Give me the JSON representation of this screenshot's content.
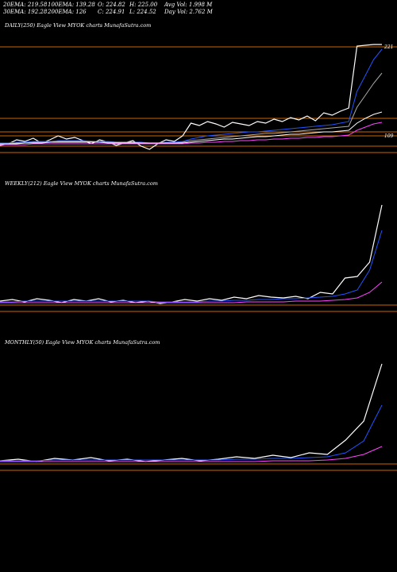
{
  "header": {
    "row1": [
      "20EMA: 219.58",
      "100EMA: 139.28",
      "O: 224.82",
      "H: 225.00",
      "Avg Vol: 1.998 M"
    ],
    "row2": [
      "30EMA: 192.28",
      "200EMA: 126",
      "C: 224.91",
      "L: 224.52",
      "Day Vol: 2.762 M"
    ]
  },
  "panels": {
    "daily": {
      "title": "DAILY(250) Eagle  View MYOK charts MunafaSutra.com"
    },
    "weekly": {
      "title": "WEEKLY(212) Eagle  View MYOK charts MunafaSutra.com"
    },
    "monthly": {
      "title": "MONTHLY(50) Eagle  View MYOK charts MunafaSutra.com"
    }
  },
  "chart_data": [
    {
      "type": "line",
      "panel": "daily",
      "ylim": [
        50,
        240
      ],
      "price_labels": [
        "221",
        "109"
      ],
      "horizontal_levels": [
        221,
        131,
        114,
        109,
        96,
        88
      ],
      "level_color": "#cc6600",
      "series": [
        {
          "color": "#ffffff",
          "values": [
            97,
            99,
            104,
            102,
            106,
            100,
            104,
            109,
            105,
            107,
            103,
            99,
            104,
            101,
            97,
            100,
            103,
            96,
            92,
            99,
            104,
            102,
            109,
            125,
            122,
            127,
            124,
            120,
            126,
            124,
            122,
            127,
            125,
            130,
            127,
            132,
            129,
            134,
            128,
            138,
            135,
            140,
            144,
            222,
            223,
            224,
            224
          ]
        },
        {
          "color": "#2255ff",
          "values": [
            100,
            100,
            101,
            101,
            102,
            102,
            102,
            103,
            103,
            103,
            103,
            102,
            102,
            102,
            101,
            101,
            101,
            101,
            100,
            100,
            101,
            101,
            102,
            105,
            107,
            109,
            110,
            111,
            112,
            113,
            114,
            114,
            115,
            116,
            117,
            118,
            119,
            120,
            121,
            122,
            123,
            125,
            127,
            165,
            185,
            205,
            218
          ]
        },
        {
          "color": "#aaaaaa",
          "values": [
            99,
            99,
            100,
            100,
            101,
            101,
            101,
            102,
            102,
            102,
            102,
            102,
            101,
            101,
            101,
            101,
            101,
            100,
            100,
            100,
            100,
            100,
            101,
            103,
            104,
            105,
            106,
            107,
            108,
            109,
            110,
            111,
            112,
            112,
            113,
            114,
            115,
            116,
            117,
            118,
            119,
            120,
            121,
            145,
            160,
            175,
            188
          ]
        },
        {
          "color": "#ffffff",
          "values": [
            99,
            99,
            99,
            100,
            100,
            100,
            101,
            101,
            101,
            101,
            101,
            101,
            101,
            100,
            100,
            100,
            100,
            100,
            100,
            100,
            100,
            100,
            100,
            101,
            102,
            103,
            104,
            105,
            105,
            106,
            107,
            108,
            108,
            109,
            110,
            111,
            111,
            112,
            113,
            114,
            114,
            115,
            116,
            125,
            131,
            136,
            139
          ]
        },
        {
          "color": "#ff44ff",
          "values": [
            98,
            98,
            98,
            98,
            99,
            99,
            99,
            99,
            99,
            99,
            99,
            99,
            99,
            99,
            99,
            99,
            99,
            99,
            99,
            99,
            99,
            99,
            99,
            100,
            100,
            101,
            101,
            102,
            102,
            103,
            103,
            104,
            104,
            105,
            105,
            106,
            106,
            107,
            107,
            108,
            108,
            109,
            110,
            116,
            120,
            124,
            126
          ]
        }
      ]
    },
    {
      "type": "line",
      "panel": "weekly",
      "ylim": [
        50,
        240
      ],
      "horizontal_levels": [
        96,
        88
      ],
      "level_color": "#cc6600",
      "series": [
        {
          "color": "#ffffff",
          "values": [
            101,
            103,
            100,
            104,
            102,
            99,
            103,
            101,
            104,
            100,
            102,
            99,
            101,
            98,
            100,
            103,
            101,
            104,
            102,
            106,
            104,
            108,
            106,
            105,
            107,
            104,
            112,
            110,
            130,
            132,
            150,
            222
          ]
        },
        {
          "color": "#2255ff",
          "values": [
            100,
            100,
            101,
            101,
            101,
            101,
            101,
            101,
            101,
            101,
            101,
            101,
            101,
            100,
            100,
            100,
            100,
            101,
            101,
            102,
            102,
            103,
            103,
            104,
            104,
            105,
            106,
            107,
            110,
            115,
            140,
            190
          ]
        },
        {
          "color": "#ff44ff",
          "values": [
            99,
            99,
            99,
            99,
            99,
            99,
            99,
            99,
            99,
            99,
            99,
            99,
            99,
            99,
            99,
            99,
            99,
            99,
            99,
            99,
            100,
            100,
            100,
            100,
            101,
            101,
            101,
            102,
            103,
            105,
            112,
            125
          ]
        }
      ]
    },
    {
      "type": "line",
      "panel": "monthly",
      "ylim": [
        50,
        240
      ],
      "horizontal_levels": [
        96,
        88
      ],
      "level_color": "#cc6600",
      "series": [
        {
          "color": "#ffffff",
          "values": [
            100,
            102,
            99,
            103,
            101,
            104,
            100,
            102,
            99,
            101,
            103,
            100,
            102,
            105,
            103,
            107,
            104,
            110,
            108,
            126,
            150,
            222
          ]
        },
        {
          "color": "#2255ff",
          "values": [
            100,
            100,
            100,
            101,
            101,
            101,
            101,
            101,
            101,
            101,
            101,
            101,
            101,
            102,
            102,
            103,
            103,
            104,
            105,
            110,
            125,
            170
          ]
        },
        {
          "color": "#ff44ff",
          "values": [
            99,
            99,
            99,
            99,
            99,
            99,
            99,
            99,
            99,
            99,
            99,
            99,
            99,
            99,
            99,
            100,
            100,
            100,
            101,
            103,
            108,
            118
          ]
        }
      ]
    }
  ]
}
